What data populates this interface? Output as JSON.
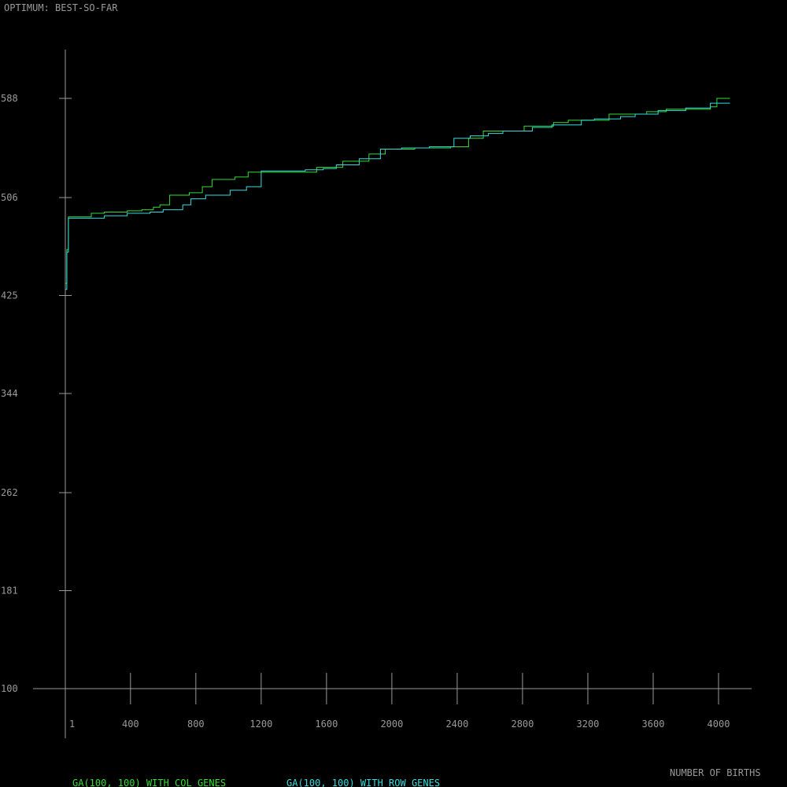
{
  "chart_data": {
    "type": "line",
    "title": "OPTIMUM: BEST-SO-FAR",
    "xlabel": "NUMBER OF BIRTHS",
    "ylabel": "",
    "xlim": [
      1,
      4000
    ],
    "ylim": [
      100,
      588
    ],
    "x_ticks": [
      1,
      400,
      800,
      1200,
      1600,
      2000,
      2400,
      2800,
      3200,
      3600,
      4000
    ],
    "x_tick_labels": [
      "1",
      "400",
      "800",
      "1200",
      "1600",
      "2000",
      "2400",
      "2800",
      "3200",
      "3600",
      "4000"
    ],
    "y_ticks": [
      100,
      181,
      262,
      344,
      425,
      506,
      588
    ],
    "y_tick_labels": [
      "100",
      "181",
      "262",
      "344",
      "425",
      "506",
      "588"
    ],
    "grid": false,
    "step": true,
    "series": [
      {
        "name": "GA(100, 100) WITH COL GENES",
        "color": "#33dd33",
        "points": [
          [
            1,
            435
          ],
          [
            10,
            463
          ],
          [
            20,
            490
          ],
          [
            160,
            493
          ],
          [
            240,
            494
          ],
          [
            380,
            495
          ],
          [
            470,
            496
          ],
          [
            540,
            498
          ],
          [
            580,
            500
          ],
          [
            640,
            508
          ],
          [
            760,
            510
          ],
          [
            840,
            515
          ],
          [
            900,
            521
          ],
          [
            1040,
            523
          ],
          [
            1120,
            527
          ],
          [
            1540,
            531
          ],
          [
            1700,
            536
          ],
          [
            1860,
            542
          ],
          [
            1960,
            546
          ],
          [
            2140,
            547
          ],
          [
            2360,
            548
          ],
          [
            2470,
            555
          ],
          [
            2560,
            561
          ],
          [
            2810,
            565
          ],
          [
            2990,
            568
          ],
          [
            3080,
            570
          ],
          [
            3330,
            575
          ],
          [
            3560,
            577
          ],
          [
            3680,
            579
          ],
          [
            3950,
            581
          ],
          [
            3990,
            588
          ],
          [
            4070,
            588
          ]
        ]
      },
      {
        "name": "GA(100, 100) WITH ROW GENES",
        "color": "#33dddd",
        "points": [
          [
            1,
            430
          ],
          [
            10,
            461
          ],
          [
            20,
            489
          ],
          [
            240,
            491
          ],
          [
            380,
            493
          ],
          [
            520,
            494
          ],
          [
            600,
            496
          ],
          [
            720,
            500
          ],
          [
            770,
            505
          ],
          [
            860,
            508
          ],
          [
            1010,
            512
          ],
          [
            1110,
            515
          ],
          [
            1200,
            528
          ],
          [
            1470,
            529
          ],
          [
            1580,
            530
          ],
          [
            1660,
            533
          ],
          [
            1800,
            538
          ],
          [
            1930,
            546
          ],
          [
            2060,
            547
          ],
          [
            2230,
            548
          ],
          [
            2380,
            555
          ],
          [
            2480,
            557
          ],
          [
            2590,
            559
          ],
          [
            2680,
            561
          ],
          [
            2860,
            564
          ],
          [
            2980,
            566
          ],
          [
            3160,
            570
          ],
          [
            3240,
            571
          ],
          [
            3400,
            573
          ],
          [
            3490,
            575
          ],
          [
            3630,
            578
          ],
          [
            3800,
            580
          ],
          [
            3950,
            584
          ],
          [
            4070,
            584
          ]
        ]
      }
    ]
  }
}
